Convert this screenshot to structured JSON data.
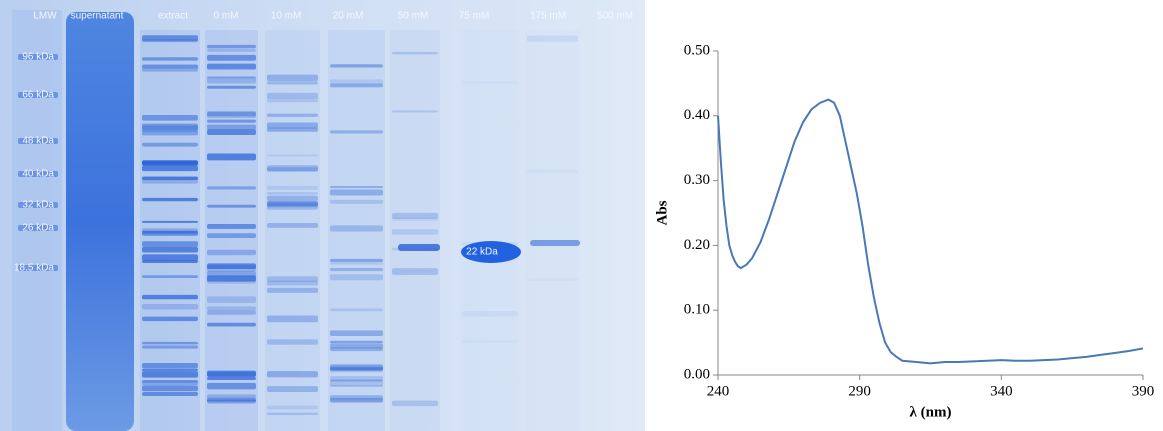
{
  "gel": {
    "lanes": [
      "LMW",
      "supernatant",
      "extract",
      "0 mM",
      "10 mM",
      "20 mM",
      "50 mM",
      "75 mM",
      "175 mM",
      "500 mM"
    ],
    "markers": [
      "96 kDa",
      "66 kDa",
      "48 kDa",
      "40 kDa",
      "32 kDa",
      "26 kDa",
      "18.5 kDa"
    ],
    "band_label": "22 kDa"
  },
  "chart_data": {
    "type": "line",
    "xlabel": "λ (nm)",
    "ylabel": "Abs",
    "x": [
      240,
      241,
      242,
      243,
      244,
      245,
      246,
      247,
      248,
      250,
      252,
      255,
      258,
      261,
      264,
      267,
      270,
      273,
      276,
      279,
      281,
      283,
      285,
      287,
      289,
      291,
      293,
      295,
      297,
      299,
      301,
      303,
      305,
      310,
      315,
      320,
      325,
      330,
      335,
      340,
      345,
      350,
      355,
      360,
      365,
      370,
      375,
      380,
      385,
      390
    ],
    "series": [
      {
        "color": "#4a78b5",
        "values": [
          0.4,
          0.33,
          0.27,
          0.23,
          0.2,
          0.185,
          0.175,
          0.168,
          0.165,
          0.17,
          0.18,
          0.205,
          0.24,
          0.28,
          0.32,
          0.36,
          0.39,
          0.41,
          0.42,
          0.425,
          0.42,
          0.4,
          0.36,
          0.32,
          0.28,
          0.23,
          0.17,
          0.12,
          0.08,
          0.05,
          0.035,
          0.028,
          0.022,
          0.02,
          0.018,
          0.02,
          0.02,
          0.021,
          0.022,
          0.023,
          0.022,
          0.022,
          0.023,
          0.024,
          0.026,
          0.028,
          0.031,
          0.034,
          0.037,
          0.041
        ]
      }
    ],
    "xlim": [
      240,
      390
    ],
    "xticks": [
      240,
      290,
      340,
      390
    ],
    "ylim": [
      0,
      0.5
    ],
    "yticks": [
      {
        "value": 0,
        "label": "0.00"
      },
      {
        "value": 0.1,
        "label": "0.10"
      },
      {
        "value": 0.2,
        "label": "0.20"
      },
      {
        "value": 0.3,
        "label": "0.30"
      },
      {
        "value": 0.4,
        "label": "0.40"
      },
      {
        "value": 0.5,
        "label": "0.50"
      }
    ]
  }
}
